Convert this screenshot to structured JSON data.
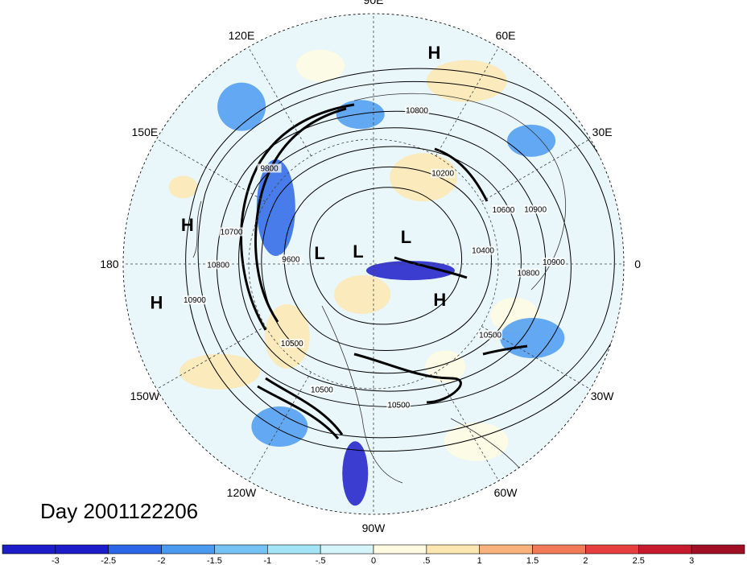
{
  "day_label": "Day 2001122206",
  "longitude_labels": [
    {
      "text": "90E",
      "angle": 90
    },
    {
      "text": "60E",
      "angle": 60
    },
    {
      "text": "30E",
      "angle": 30
    },
    {
      "text": "0",
      "angle": 0
    },
    {
      "text": "30W",
      "angle": -30
    },
    {
      "text": "60W",
      "angle": -60
    },
    {
      "text": "90W",
      "angle": -90
    },
    {
      "text": "120W",
      "angle": -120
    },
    {
      "text": "150W",
      "angle": -150
    },
    {
      "text": "180",
      "angle": 180
    },
    {
      "text": "150E",
      "angle": 150
    },
    {
      "text": "120E",
      "angle": 120
    }
  ],
  "pressure_systems": [
    {
      "type": "H",
      "r": 0.88,
      "angle": 74
    },
    {
      "type": "H",
      "r": 0.76,
      "angle": 168
    },
    {
      "type": "H",
      "r": 0.88,
      "angle": 190
    },
    {
      "type": "L",
      "r": 0.22,
      "angle": 168
    },
    {
      "type": "L",
      "r": 0.08,
      "angle": 140
    },
    {
      "type": "L",
      "r": 0.17,
      "angle": 40
    },
    {
      "type": "H",
      "r": 0.3,
      "angle": -28
    }
  ],
  "contour_labels": [
    {
      "text": "10800",
      "r": 0.63,
      "angle": 74
    },
    {
      "text": "10200",
      "r": 0.45,
      "angle": 52
    },
    {
      "text": "10600",
      "r": 0.56,
      "angle": 22
    },
    {
      "text": "10900",
      "r": 0.68,
      "angle": 18
    },
    {
      "text": "10400",
      "r": 0.44,
      "angle": 6
    },
    {
      "text": "10800",
      "r": 0.62,
      "angle": -4
    },
    {
      "text": "10900",
      "r": 0.72,
      "angle": 0
    },
    {
      "text": "10500",
      "r": 0.55,
      "angle": -32
    },
    {
      "text": "9800",
      "r": 0.56,
      "angle": 138
    },
    {
      "text": "10700",
      "r": 0.58,
      "angle": 168
    },
    {
      "text": "9600",
      "r": 0.33,
      "angle": 178
    },
    {
      "text": "10800",
      "r": 0.62,
      "angle": 181
    },
    {
      "text": "10900",
      "r": 0.73,
      "angle": 192
    },
    {
      "text": "10500",
      "r": 0.46,
      "angle": -135
    },
    {
      "text": "10500",
      "r": 0.55,
      "angle": -112
    },
    {
      "text": "10500",
      "r": 0.58,
      "angle": -80
    }
  ],
  "shading_blobs": [
    {
      "r": 0.82,
      "angle": 63,
      "rx": 50,
      "ry": 26,
      "level": 7
    },
    {
      "r": 0.82,
      "angle": 105,
      "rx": 30,
      "ry": 20,
      "level": 6
    },
    {
      "r": 0.4,
      "angle": 60,
      "rx": 42,
      "ry": 30,
      "level": 7
    },
    {
      "r": 0.45,
      "angle": 150,
      "rx": 24,
      "ry": 60,
      "level": 1
    },
    {
      "r": 0.15,
      "angle": -10,
      "rx": 55,
      "ry": 12,
      "level": 0
    },
    {
      "r": 0.13,
      "angle": -110,
      "rx": 35,
      "ry": 24,
      "level": 7
    },
    {
      "r": 0.45,
      "angle": -140,
      "rx": 28,
      "ry": 40,
      "level": 7
    },
    {
      "r": 0.75,
      "angle": -145,
      "rx": 50,
      "ry": 22,
      "level": 7
    },
    {
      "r": 0.84,
      "angle": -95,
      "rx": 16,
      "ry": 40,
      "level": 0
    },
    {
      "r": 0.6,
      "angle": -20,
      "rx": 30,
      "ry": 22,
      "level": 6
    },
    {
      "r": 0.82,
      "angle": -60,
      "rx": 40,
      "ry": 24,
      "level": 6
    },
    {
      "r": 0.8,
      "angle": 38,
      "rx": 30,
      "ry": 20,
      "level": 2
    },
    {
      "r": 0.82,
      "angle": 158,
      "rx": 18,
      "ry": 14,
      "level": 7
    },
    {
      "r": 0.7,
      "angle": -25,
      "rx": 40,
      "ry": 25,
      "level": 2
    },
    {
      "r": 0.75,
      "angle": -120,
      "rx": 35,
      "ry": 25,
      "level": 2
    },
    {
      "r": 0.82,
      "angle": 130,
      "rx": 30,
      "ry": 30,
      "level": 2
    },
    {
      "r": 0.6,
      "angle": 95,
      "rx": 30,
      "ry": 18,
      "level": 2
    },
    {
      "r": 0.5,
      "angle": -55,
      "rx": 25,
      "ry": 20,
      "level": 6
    }
  ],
  "colorbar": {
    "colors": [
      "#1c1cc9",
      "#2a66e6",
      "#4a9af0",
      "#74c3f4",
      "#a4e4f7",
      "#d6f5fb",
      "#fffbe2",
      "#fde7b0",
      "#f9b27c",
      "#f37a58",
      "#e63f3f",
      "#c81a2e",
      "#a00f24"
    ],
    "labels": [
      "-3",
      "-2.5",
      "-2",
      "-1.5",
      "-1",
      "-.5",
      "0",
      ".5",
      "1",
      "1.5",
      "2",
      "2.5",
      "3"
    ]
  }
}
